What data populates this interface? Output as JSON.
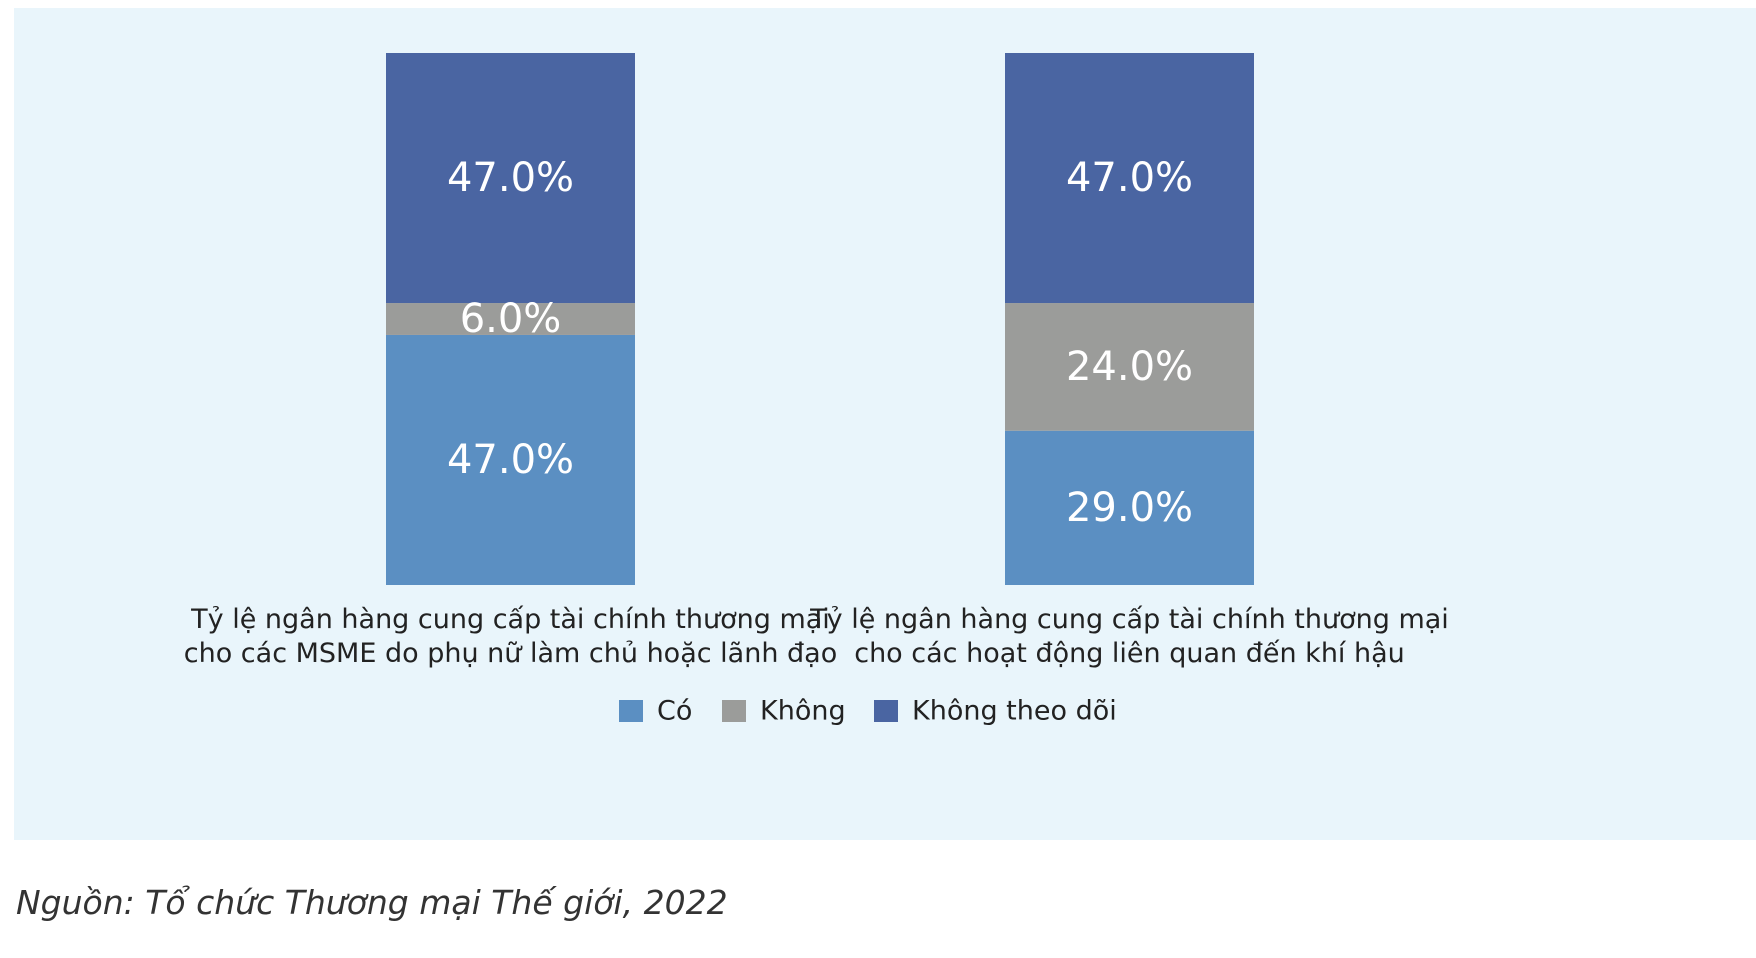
{
  "chart_data": {
    "type": "bar",
    "stacked": true,
    "categories": [
      [
        "Tỷ lệ ngân hàng cung cấp tài chính thương mại",
        "cho các MSME do phụ nữ làm chủ hoặc lãnh đạo"
      ],
      [
        "Tỷ lệ ngân hàng cung cấp tài chính thương mại",
        "cho các hoạt động liên quan đến khí hậu"
      ]
    ],
    "series": [
      {
        "name": "Có",
        "color": "#5b8fc2",
        "values": [
          47.0,
          29.0
        ],
        "labels": [
          "47.0%",
          "29.0%"
        ]
      },
      {
        "name": "Không",
        "color": "#9b9c9a",
        "values": [
          6.0,
          24.0
        ],
        "labels": [
          "6.0%",
          "24.0%"
        ]
      },
      {
        "name": "Không theo dõi",
        "color": "#4a65a2",
        "values": [
          47.0,
          47.0
        ],
        "labels": [
          "47.0%",
          "47.0%"
        ]
      }
    ],
    "ylim": [
      0,
      100
    ],
    "grid": false,
    "legend_position": "bottom"
  },
  "source": "Nguồn: Tổ chức Thương mại Thế giới, 2022"
}
